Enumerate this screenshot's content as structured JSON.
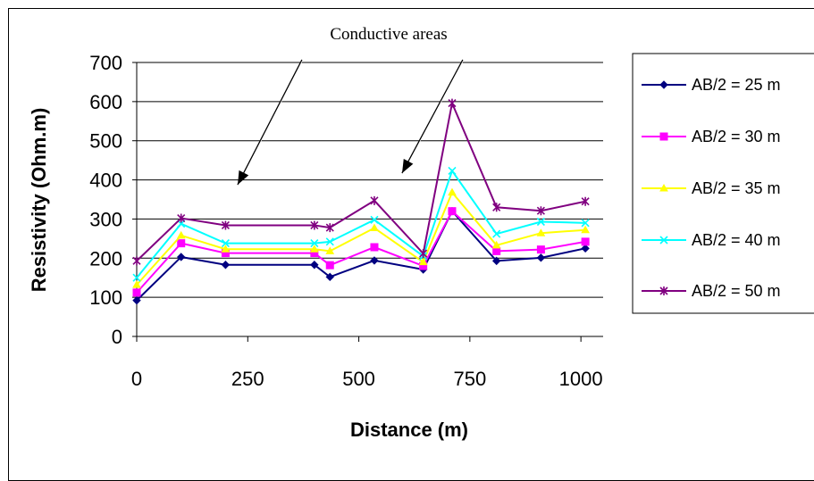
{
  "chart_data": {
    "type": "line",
    "title": "",
    "annotation": "Conductive areas",
    "xlabel": "Distance (m)",
    "ylabel": "Resistivity (Ohm.m)",
    "xlim": [
      0,
      1050
    ],
    "ylim": [
      0,
      700
    ],
    "xticks": [
      0,
      250,
      500,
      750,
      1000
    ],
    "yticks": [
      0,
      100,
      200,
      300,
      400,
      500,
      600,
      700
    ],
    "grid": "horizontal",
    "legend": "right",
    "x": [
      0,
      100,
      200,
      400,
      435,
      535,
      645,
      710,
      810,
      910,
      1010
    ],
    "series": [
      {
        "name": "AB/2 = 25 m",
        "color": "#000080",
        "marker": "diamond",
        "values": [
          92,
          203,
          183,
          183,
          152,
          194,
          171,
          320,
          193,
          201,
          225
        ]
      },
      {
        "name": "AB/2 = 30 m",
        "color": "#FF00FF",
        "marker": "square",
        "values": [
          112,
          238,
          213,
          213,
          182,
          228,
          180,
          320,
          218,
          222,
          242
        ]
      },
      {
        "name": "AB/2 = 35 m",
        "color": "#FFFF00",
        "marker": "triangle",
        "values": [
          132,
          258,
          223,
          223,
          218,
          277,
          190,
          368,
          233,
          264,
          272
        ]
      },
      {
        "name": "AB/2 = 40 m",
        "color": "#00FFFF",
        "marker": "x",
        "values": [
          150,
          288,
          238,
          238,
          242,
          298,
          205,
          423,
          262,
          293,
          290
        ]
      },
      {
        "name": "AB/2 = 50 m",
        "color": "#800080",
        "marker": "star",
        "values": [
          193,
          302,
          284,
          284,
          278,
          347,
          212,
          596,
          330,
          321,
          345
        ]
      }
    ]
  }
}
